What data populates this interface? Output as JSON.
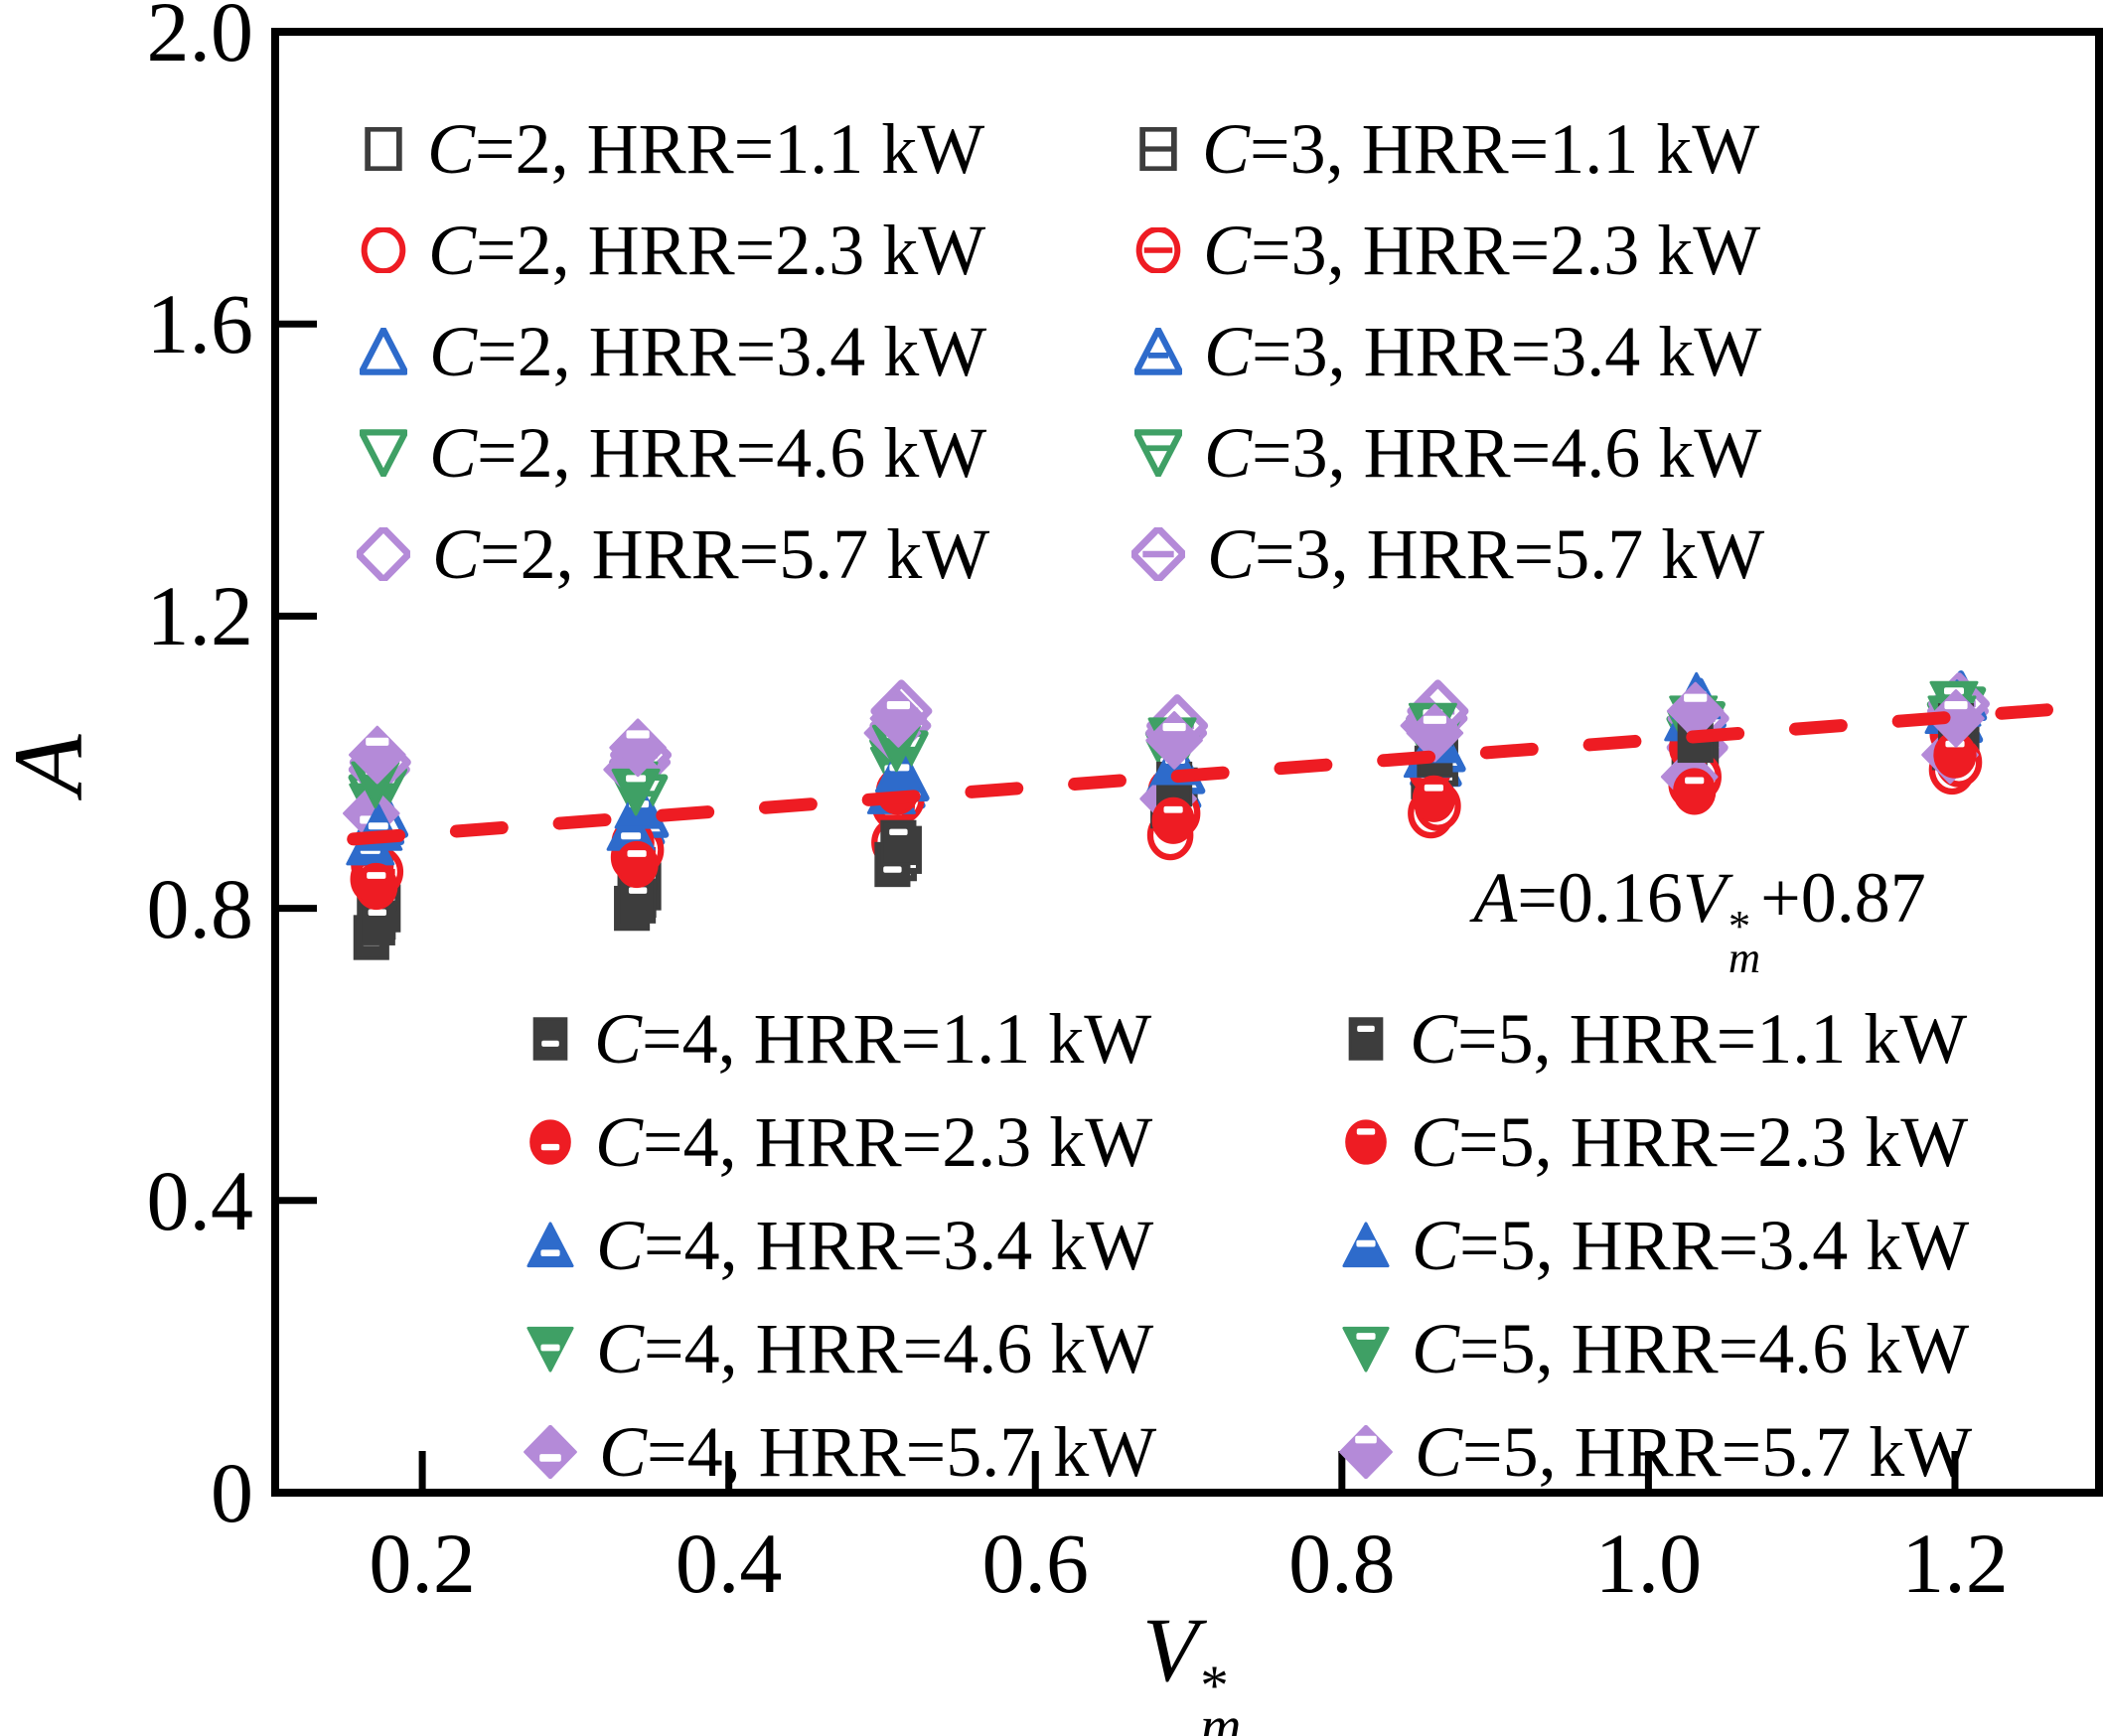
{
  "figure": {
    "background": "#ffffff"
  },
  "axes": {
    "x": {
      "label_base": "V",
      "label_sup": "*",
      "label_sub": "m",
      "tick_values": [
        0.2,
        0.4,
        0.6,
        0.8,
        1.0,
        1.2
      ],
      "tick_labels": [
        "0.2",
        "0.4",
        "0.6",
        "0.8",
        "1.0",
        "1.2"
      ],
      "range": [
        0.104,
        1.294
      ]
    },
    "y": {
      "label": "A",
      "tick_values": [
        0,
        0.4,
        0.8,
        1.2,
        1.6,
        2.0
      ],
      "tick_labels": [
        "0",
        "0.4",
        "0.8",
        "1.2",
        "1.6",
        "2.0"
      ],
      "range": [
        0,
        2.0
      ]
    }
  },
  "equation": {
    "lhs": "A",
    "mid": "=0.16",
    "var_base": "V",
    "var_sup": "*",
    "var_sub": "m",
    "tail": "+0.87"
  },
  "chart_data": {
    "type": "scatter",
    "title": "",
    "xlabel": "V*_m",
    "ylabel": "A",
    "xlim": [
      0.104,
      1.294
    ],
    "ylim": [
      0,
      2.0
    ],
    "grid": false,
    "x": [
      0.17,
      0.34,
      0.51,
      0.69,
      0.86,
      1.03,
      1.2
    ],
    "series": [
      {
        "label_c": "C",
        "label_rest": "=2, HRR=1.1 kW",
        "C": 2,
        "HRR_kW": 1.1,
        "marker": "square",
        "variant": "open",
        "color": "#3d3d3d",
        "values": [
          0.79,
          0.82,
          0.87,
          0.95,
          0.99,
          1.01,
          1.03
        ]
      },
      {
        "label_c": "C",
        "label_rest": "=2, HRR=2.3 kW",
        "C": 2,
        "HRR_kW": 2.3,
        "marker": "circle",
        "variant": "open",
        "color": "#ee1c23",
        "values": [
          0.84,
          0.87,
          0.89,
          0.9,
          0.93,
          0.97,
          0.99
        ]
      },
      {
        "label_c": "C",
        "label_rest": "=2, HRR=3.4 kW",
        "C": 2,
        "HRR_kW": 3.4,
        "marker": "triangle-up",
        "variant": "open",
        "color": "#2e6bcb",
        "values": [
          0.92,
          0.92,
          0.97,
          0.97,
          1.0,
          1.05,
          1.06
        ]
      },
      {
        "label_c": "C",
        "label_rest": "=2, HRR=4.6 kW",
        "C": 2,
        "HRR_kW": 4.6,
        "marker": "triangle-down",
        "variant": "open",
        "color": "#3fa065",
        "values": [
          0.95,
          0.96,
          1.0,
          1.01,
          1.03,
          1.03,
          1.05
        ]
      },
      {
        "label_c": "C",
        "label_rest": "=2, HRR=5.7 kW",
        "C": 2,
        "HRR_kW": 5.7,
        "marker": "diamond",
        "variant": "open",
        "color": "#b48ad8",
        "values": [
          0.99,
          1.0,
          1.05,
          1.04,
          1.06,
          1.02,
          1.07
        ]
      },
      {
        "label_c": "C",
        "label_rest": "=3, HRR=1.1 kW",
        "C": 3,
        "HRR_kW": 1.1,
        "marker": "square",
        "variant": "open-hline",
        "color": "#3d3d3d",
        "values": [
          0.8,
          0.83,
          0.88,
          0.96,
          1.0,
          1.02,
          1.04
        ]
      },
      {
        "label_c": "C",
        "label_rest": "=3, HRR=2.3 kW",
        "C": 3,
        "HRR_kW": 2.3,
        "marker": "circle",
        "variant": "open-hline",
        "color": "#ee1c23",
        "values": [
          0.85,
          0.88,
          0.95,
          0.93,
          0.94,
          0.98,
          1.0
        ]
      },
      {
        "label_c": "C",
        "label_rest": "=3, HRR=3.4 kW",
        "C": 3,
        "HRR_kW": 3.4,
        "marker": "triangle-up",
        "variant": "open-hline",
        "color": "#2e6bcb",
        "values": [
          0.93,
          0.93,
          0.98,
          0.99,
          1.02,
          1.08,
          1.09
        ]
      },
      {
        "label_c": "C",
        "label_rest": "=3, HRR=4.6 kW",
        "C": 3,
        "HRR_kW": 4.6,
        "marker": "triangle-down",
        "variant": "open-hline",
        "color": "#3fa065",
        "values": [
          0.96,
          0.95,
          1.01,
          1.02,
          1.04,
          1.05,
          1.07
        ]
      },
      {
        "label_c": "C",
        "label_rest": "=3, HRR=5.7 kW",
        "C": 3,
        "HRR_kW": 5.7,
        "marker": "diamond",
        "variant": "open-hline",
        "color": "#b48ad8",
        "values": [
          1.0,
          1.01,
          1.07,
          1.05,
          1.07,
          1.06,
          1.08
        ]
      },
      {
        "label_c": "C",
        "label_rest": "=4, HRR=1.1 kW",
        "C": 4,
        "HRR_kW": 1.1,
        "marker": "square",
        "variant": "filled-notch-bottom",
        "color": "#3d3d3d",
        "values": [
          0.76,
          0.8,
          0.86,
          0.94,
          0.98,
          1.0,
          1.02
        ]
      },
      {
        "label_c": "C",
        "label_rest": "=4, HRR=2.3 kW",
        "C": 4,
        "HRR_kW": 2.3,
        "marker": "circle",
        "variant": "filled-notch-bottom",
        "color": "#ee1c23",
        "values": [
          0.86,
          0.89,
          0.94,
          0.96,
          0.99,
          1.02,
          1.04
        ]
      },
      {
        "label_c": "C",
        "label_rest": "=4, HRR=3.4 kW",
        "C": 4,
        "HRR_kW": 3.4,
        "marker": "triangle-up",
        "variant": "filled-notch-bottom",
        "color": "#2e6bcb",
        "values": [
          0.89,
          0.91,
          0.96,
          0.98,
          1.01,
          1.06,
          1.07
        ]
      },
      {
        "label_c": "C",
        "label_rest": "=4, HRR=4.6 kW",
        "C": 4,
        "HRR_kW": 4.6,
        "marker": "triangle-down",
        "variant": "filled-notch-bottom",
        "color": "#3fa065",
        "values": [
          0.94,
          0.97,
          0.99,
          1.0,
          1.02,
          1.04,
          1.06
        ]
      },
      {
        "label_c": "C",
        "label_rest": "=4, HRR=5.7 kW",
        "C": 4,
        "HRR_kW": 5.7,
        "marker": "diamond",
        "variant": "filled-notch-bottom",
        "color": "#b48ad8",
        "values": [
          0.93,
          0.99,
          1.04,
          0.95,
          1.05,
          0.98,
          1.01
        ]
      },
      {
        "label_c": "C",
        "label_rest": "=5, HRR=1.1 kW",
        "C": 5,
        "HRR_kW": 1.1,
        "marker": "square",
        "variant": "filled-notch-top",
        "color": "#3d3d3d",
        "values": [
          0.78,
          0.81,
          0.89,
          0.97,
          1.01,
          1.03,
          1.05
        ]
      },
      {
        "label_c": "C",
        "label_rest": "=5, HRR=2.3 kW",
        "C": 5,
        "HRR_kW": 2.3,
        "marker": "circle",
        "variant": "filled-notch-top",
        "color": "#ee1c23",
        "values": [
          0.83,
          0.86,
          0.96,
          0.92,
          0.95,
          0.96,
          1.01
        ]
      },
      {
        "label_c": "C",
        "label_rest": "=5, HRR=3.4 kW",
        "C": 5,
        "HRR_kW": 3.4,
        "marker": "triangle-up",
        "variant": "filled-notch-top",
        "color": "#2e6bcb",
        "values": [
          0.91,
          0.94,
          0.99,
          1.0,
          1.03,
          1.09,
          1.08
        ]
      },
      {
        "label_c": "C",
        "label_rest": "=5, HRR=4.6 kW",
        "C": 5,
        "HRR_kW": 4.6,
        "marker": "triangle-down",
        "variant": "filled-notch-top",
        "color": "#3fa065",
        "values": [
          0.97,
          0.96,
          1.02,
          1.03,
          1.05,
          1.06,
          1.08
        ]
      },
      {
        "label_c": "C",
        "label_rest": "=5, HRR=5.7 kW",
        "C": 5,
        "HRR_kW": 5.7,
        "marker": "diamond",
        "variant": "filled-notch-top",
        "color": "#b48ad8",
        "values": [
          1.01,
          1.02,
          1.06,
          1.03,
          1.04,
          1.07,
          1.06
        ]
      }
    ],
    "fit_line": {
      "label": "A=0.16V*m+0.87",
      "slope": 0.16,
      "intercept": 0.87,
      "x_start": 0.155,
      "x_end": 1.26,
      "color": "#ee1c23",
      "style": "dashed"
    },
    "legend_position": {
      "C2": "top-left",
      "C3": "top-right",
      "C4": "bottom-left",
      "C5": "bottom-right"
    }
  }
}
